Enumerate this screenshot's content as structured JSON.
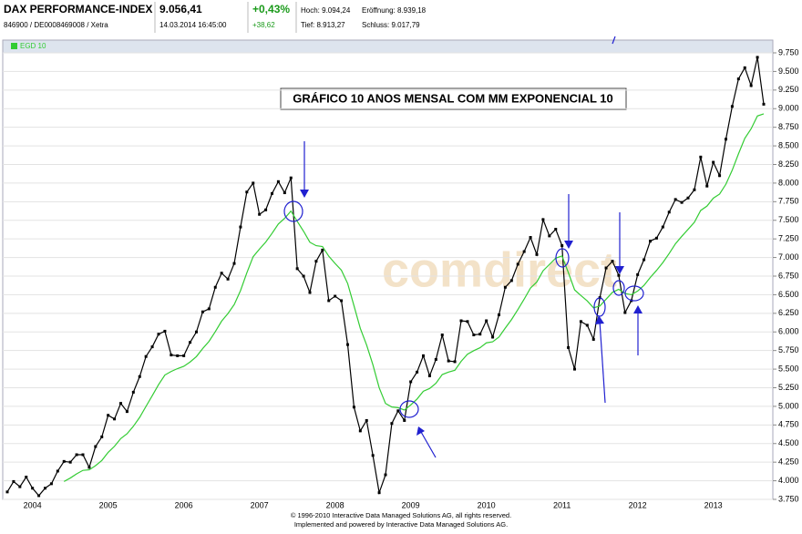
{
  "header": {
    "name": "DAX PERFORMANCE-INDEX",
    "id": "846900 / DE0008469008 / Xetra",
    "price": "9.056,41",
    "time": "14.03.2014 16:45:00",
    "change_pct": "+0,43%",
    "change_abs": "+38,62",
    "high": "Hoch: 9.094,24",
    "open": "Eröffnung: 8.939,18",
    "low": "Tief: 8.913,27",
    "close": "Schluss: 9.017,79"
  },
  "chart_data": {
    "type": "line",
    "title": "GRÁFICO 10 ANOS MENSAL COM MM EXPONENCIAL 10",
    "watermark": "comdirect",
    "categories": [
      null,
      null,
      null,
      null,
      "2004",
      null,
      null,
      null,
      null,
      null,
      null,
      null,
      null,
      null,
      null,
      null,
      "2005",
      null,
      null,
      null,
      null,
      null,
      null,
      null,
      null,
      null,
      null,
      null,
      "2006",
      null,
      null,
      null,
      null,
      null,
      null,
      null,
      null,
      null,
      null,
      null,
      "2007",
      null,
      null,
      null,
      null,
      null,
      null,
      null,
      null,
      null,
      null,
      null,
      "2008",
      null,
      null,
      null,
      null,
      null,
      null,
      null,
      null,
      null,
      null,
      null,
      "2009",
      null,
      null,
      null,
      null,
      null,
      null,
      null,
      null,
      null,
      null,
      null,
      "2010",
      null,
      null,
      null,
      null,
      null,
      null,
      null,
      null,
      null,
      null,
      null,
      "2011",
      null,
      null,
      null,
      null,
      null,
      null,
      null,
      null,
      null,
      null,
      null,
      "2012",
      null,
      null,
      null,
      null,
      null,
      null,
      null,
      null,
      null,
      null,
      null,
      "2013",
      null,
      null,
      null,
      null,
      null,
      null,
      null,
      null
    ],
    "series": [
      {
        "color": "#000000",
        "values": [
          3850,
          3990,
          3920,
          4050,
          3900,
          3800,
          3900,
          3960,
          4130,
          4260,
          4250,
          4350,
          4350,
          4180,
          4460,
          4590,
          4880,
          4830,
          5040,
          4930,
          5190,
          5400,
          5670,
          5800,
          5970,
          6010,
          5690,
          5680,
          5680,
          5860,
          6000,
          6270,
          6310,
          6600,
          6790,
          6710,
          6920,
          7410,
          7880,
          8000,
          7580,
          7640,
          7860,
          8020,
          7870,
          8070,
          6850,
          6750,
          6530,
          6950,
          7100,
          6420,
          6480,
          6420,
          5830,
          4990,
          4670,
          4810,
          4340,
          3840,
          4080,
          4770,
          4940,
          4810,
          5330,
          5460,
          5680,
          5410,
          5630,
          5960,
          5610,
          5600,
          6150,
          6140,
          5960,
          5970,
          6150,
          5930,
          6230,
          6600,
          6690,
          6910,
          7080,
          7270,
          7040,
          7510,
          7290,
          7380,
          7160,
          5790,
          5500,
          6140,
          6090,
          5900,
          6460,
          6860,
          6950,
          6760,
          6260,
          6420,
          6770,
          6970,
          7220,
          7260,
          7410,
          7610,
          7780,
          7740,
          7800,
          7910,
          8350,
          7960,
          8280,
          8100,
          8590,
          9030,
          9400,
          9550,
          9310,
          9690,
          9060
        ]
      },
      {
        "name": "EGD 10",
        "color": "#33cc33",
        "values": [
          null,
          null,
          null,
          null,
          null,
          null,
          null,
          null,
          null,
          3990,
          4037,
          4093,
          4140,
          4147,
          4203,
          4273,
          4382,
          4463,
          4567,
          4632,
          4732,
          4852,
          4999,
          5143,
          5292,
          5421,
          5469,
          5507,
          5538,
          5596,
          5669,
          5777,
          5873,
          6004,
          6145,
          6247,
          6368,
          6556,
          6794,
          7011,
          7113,
          7208,
          7325,
          7450,
          7526,
          7624,
          7485,
          7353,
          7205,
          7159,
          7148,
          7017,
          6920,
          6830,
          6650,
          6351,
          6048,
          5825,
          5558,
          5249,
          5039,
          4991,
          4982,
          4951,
          5019,
          5098,
          5203,
          5240,
          5310,
          5427,
          5460,
          5485,
          5605,
          5701,
          5748,
          5788,
          5853,
          5867,
          5932,
          6052,
          6167,
          6301,
          6441,
          6590,
          6671,
          6822,
          6906,
          6991,
          7021,
          6799,
          6565,
          6489,
          6417,
          6324,
          6348,
          6440,
          6532,
          6573,
          6517,
          6500,
          6549,
          6625,
          6732,
          6827,
          6932,
          7054,
          7185,
          7285,
          7378,
          7474,
          7632,
          7691,
          7797,
          7852,
          7985,
          8173,
          8394,
          8602,
          8729,
          8902,
          8930
        ]
      }
    ],
    "ylim": [
      3750,
      9750
    ],
    "yticks": [
      {
        "value": 3750,
        "label": "3.750"
      },
      {
        "value": 4000,
        "label": "4.000"
      },
      {
        "value": 4250,
        "label": "4.250"
      },
      {
        "value": 4500,
        "label": "4.500"
      },
      {
        "value": 4750,
        "label": "4.750"
      },
      {
        "value": 5000,
        "label": "5.000"
      },
      {
        "value": 5250,
        "label": "5.250"
      },
      {
        "value": 5500,
        "label": "5.500"
      },
      {
        "value": 5750,
        "label": "5.750"
      },
      {
        "value": 6000,
        "label": "6.000"
      },
      {
        "value": 6250,
        "label": "6.250"
      },
      {
        "value": 6500,
        "label": "6.500"
      },
      {
        "value": 6750,
        "label": "6.750"
      },
      {
        "value": 7000,
        "label": "7.000"
      },
      {
        "value": 7250,
        "label": "7.250"
      },
      {
        "value": 7500,
        "label": "7.500"
      },
      {
        "value": 7750,
        "label": "7.750"
      },
      {
        "value": 8000,
        "label": "8.000"
      },
      {
        "value": 8250,
        "label": "8.250"
      },
      {
        "value": 8500,
        "label": "8.500"
      },
      {
        "value": 8750,
        "label": "8.750"
      },
      {
        "value": 9000,
        "label": "9.000"
      },
      {
        "value": 9250,
        "label": "9.250"
      },
      {
        "value": 9500,
        "label": "9.500"
      },
      {
        "value": 9750,
        "label": "9.750"
      }
    ],
    "grid": true,
    "legend": "top-left"
  },
  "footer": {
    "line1": "© 1996-2010 Interactive Data Managed Solutions AG, all rights reserved.",
    "line2": "Implemented and powered by Interactive Data Managed Solutions AG."
  }
}
